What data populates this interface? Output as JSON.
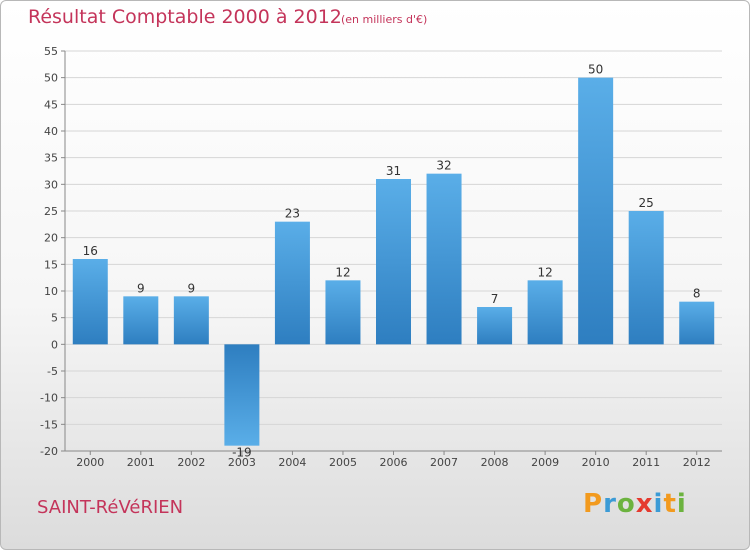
{
  "title": "Résultat Comptable 2000 à 2012",
  "subtitle": "(en milliers d'€)",
  "commune": "SAINT-RéVéRIEN",
  "logo": {
    "text": "Proxiti",
    "letters": [
      "P",
      "r",
      "o",
      "x",
      "i",
      "t",
      "i"
    ],
    "colors": [
      "#f29a1e",
      "#3b9bd6",
      "#6cb33f",
      "#e53a2f",
      "#3b9bd6",
      "#f29a1e",
      "#6cb33f"
    ]
  },
  "colors": {
    "bar_top": "#5aaee8",
    "bar_bottom": "#2e7ec0",
    "title": "#c4345a",
    "grid": "#d6d6d6"
  },
  "chart_data": {
    "type": "bar",
    "title": "Résultat Comptable 2000 à 2012",
    "subtitle": "(en milliers d'€)",
    "xlabel": "",
    "ylabel": "",
    "categories": [
      "2000",
      "2001",
      "2002",
      "2003",
      "2004",
      "2005",
      "2006",
      "2007",
      "2008",
      "2009",
      "2010",
      "2011",
      "2012"
    ],
    "values": [
      16,
      9,
      9,
      -19,
      23,
      12,
      31,
      32,
      7,
      12,
      50,
      25,
      8
    ],
    "ylim": [
      -20,
      55
    ],
    "yticks": [
      -20,
      -15,
      -10,
      -5,
      0,
      5,
      10,
      15,
      20,
      25,
      30,
      35,
      40,
      45,
      50,
      55
    ],
    "grid": true,
    "legend": "none"
  }
}
